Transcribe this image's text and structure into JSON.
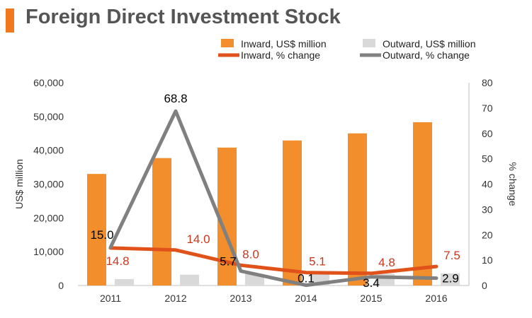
{
  "title": "Foreign Direct Investment Stock",
  "colors": {
    "accent": "#f0781e",
    "inward_bar": "#f28e2b",
    "outward_bar": "#d9d9d9",
    "inward_line": "#e0521a",
    "outward_line": "#808080",
    "inward_label": "#c8391e",
    "outward_label": "#000000",
    "axis_text": "#333333"
  },
  "chart_data": {
    "type": "bar",
    "title": "Foreign Direct Investment Stock",
    "categories": [
      "2011",
      "2012",
      "2013",
      "2014",
      "2015",
      "2016"
    ],
    "ylabel": "US$ million",
    "y2label": "% change",
    "ylim": [
      0,
      60000
    ],
    "y2lim": [
      0,
      80
    ],
    "yticks": [
      "0",
      "10,000",
      "20,000",
      "30,000",
      "40,000",
      "50,000",
      "60,000"
    ],
    "y2ticks": [
      "0",
      "10",
      "20",
      "30",
      "40",
      "50",
      "60",
      "70",
      "80"
    ],
    "grid": false,
    "legend_position": "top",
    "series": [
      {
        "name": "Inward, US$ million",
        "kind": "bar",
        "axis": "left",
        "values": [
          33000,
          37700,
          40800,
          42900,
          45000,
          48300
        ]
      },
      {
        "name": "Outward, US$ million",
        "kind": "bar",
        "axis": "left",
        "values": [
          1900,
          3200,
          3400,
          3400,
          3500,
          3600
        ]
      },
      {
        "name": "Inward, % change",
        "kind": "line",
        "axis": "right",
        "values": [
          14.8,
          14.0,
          8.0,
          5.1,
          4.8,
          7.5
        ],
        "labels": [
          "14.8",
          "14.0",
          "8.0",
          "5.1",
          "4.8",
          "7.5"
        ]
      },
      {
        "name": "Outward, % change",
        "kind": "line",
        "axis": "right",
        "values": [
          15.0,
          68.8,
          5.7,
          0.1,
          3.4,
          2.9
        ],
        "labels": [
          "15.0",
          "68.8",
          "5.7",
          "0.1",
          "3.4",
          "2.9"
        ]
      }
    ]
  }
}
